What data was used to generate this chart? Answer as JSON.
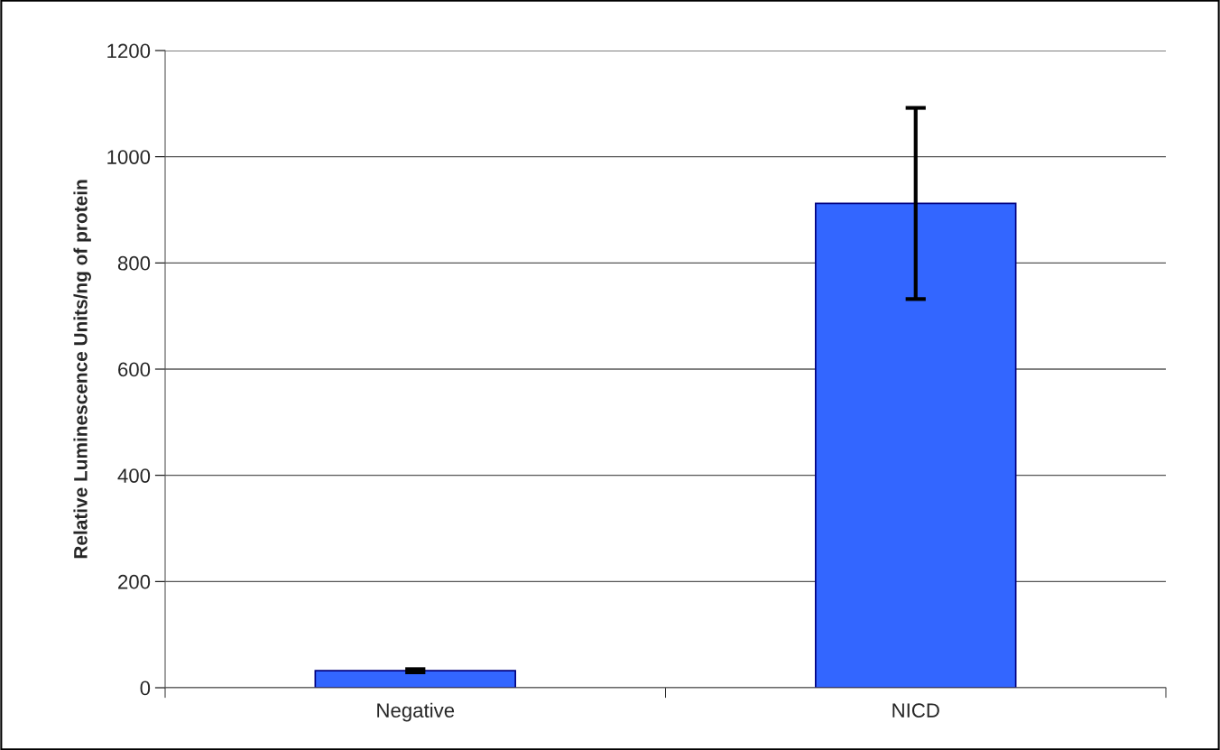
{
  "chart_data": {
    "type": "bar",
    "ylabel": "Relative Luminescence Units/ng of protein",
    "categories": [
      "Negative",
      "NICD"
    ],
    "values": [
      32,
      912
    ],
    "errors": [
      3,
      180
    ],
    "color": "#3366ff",
    "ylim": [
      0,
      1200
    ],
    "yticks": [
      0,
      200,
      400,
      600,
      800,
      1000,
      1200
    ],
    "grid": "y",
    "legend": false
  }
}
